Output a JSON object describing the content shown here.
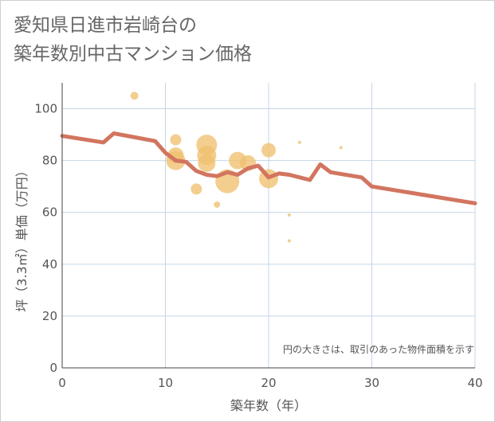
{
  "title_lines": [
    "愛知県日進市岩崎台の",
    "築年数別中古マンション価格"
  ],
  "chart_data": {
    "type": "scatter",
    "xlabel": "築年数（年）",
    "ylabel": "坪（3.3㎡）単価（万円）",
    "xlim": [
      0,
      40
    ],
    "ylim": [
      0,
      110
    ],
    "x_ticks": [
      0,
      10,
      20,
      30,
      40
    ],
    "y_ticks": [
      0,
      20,
      40,
      60,
      80,
      100
    ],
    "grid": true,
    "annotation": "円の大きさは、取引のあった物件面積を示す",
    "bubble_color": "#f0c070",
    "line_color": "#d27560",
    "bubbles": [
      {
        "x": 7,
        "y": 105,
        "r": 5
      },
      {
        "x": 11,
        "y": 88,
        "r": 7
      },
      {
        "x": 11,
        "y": 82,
        "r": 10
      },
      {
        "x": 11,
        "y": 80,
        "r": 12
      },
      {
        "x": 13,
        "y": 69,
        "r": 7
      },
      {
        "x": 14,
        "y": 86,
        "r": 13
      },
      {
        "x": 14,
        "y": 82,
        "r": 12
      },
      {
        "x": 14,
        "y": 79,
        "r": 11
      },
      {
        "x": 15,
        "y": 63,
        "r": 4
      },
      {
        "x": 16,
        "y": 72,
        "r": 15
      },
      {
        "x": 17,
        "y": 80,
        "r": 11
      },
      {
        "x": 18,
        "y": 79,
        "r": 10
      },
      {
        "x": 20,
        "y": 84,
        "r": 9
      },
      {
        "x": 20,
        "y": 73,
        "r": 12
      },
      {
        "x": 22,
        "y": 59,
        "r": 2
      },
      {
        "x": 22,
        "y": 49,
        "r": 2
      },
      {
        "x": 23,
        "y": 87,
        "r": 2
      },
      {
        "x": 27,
        "y": 85,
        "r": 2
      }
    ],
    "trend": {
      "x": [
        0,
        4,
        5,
        9,
        10,
        11,
        12,
        13,
        14,
        15,
        16,
        17,
        18,
        19,
        20,
        21,
        22,
        24,
        25,
        26,
        29,
        30,
        40
      ],
      "y": [
        89.5,
        87,
        90.5,
        87.5,
        83,
        80,
        79.5,
        76,
        74.5,
        74,
        75.5,
        74.5,
        77,
        78,
        73.5,
        75,
        74.5,
        72.5,
        78.5,
        75.5,
        73.5,
        70,
        63.5
      ]
    }
  }
}
